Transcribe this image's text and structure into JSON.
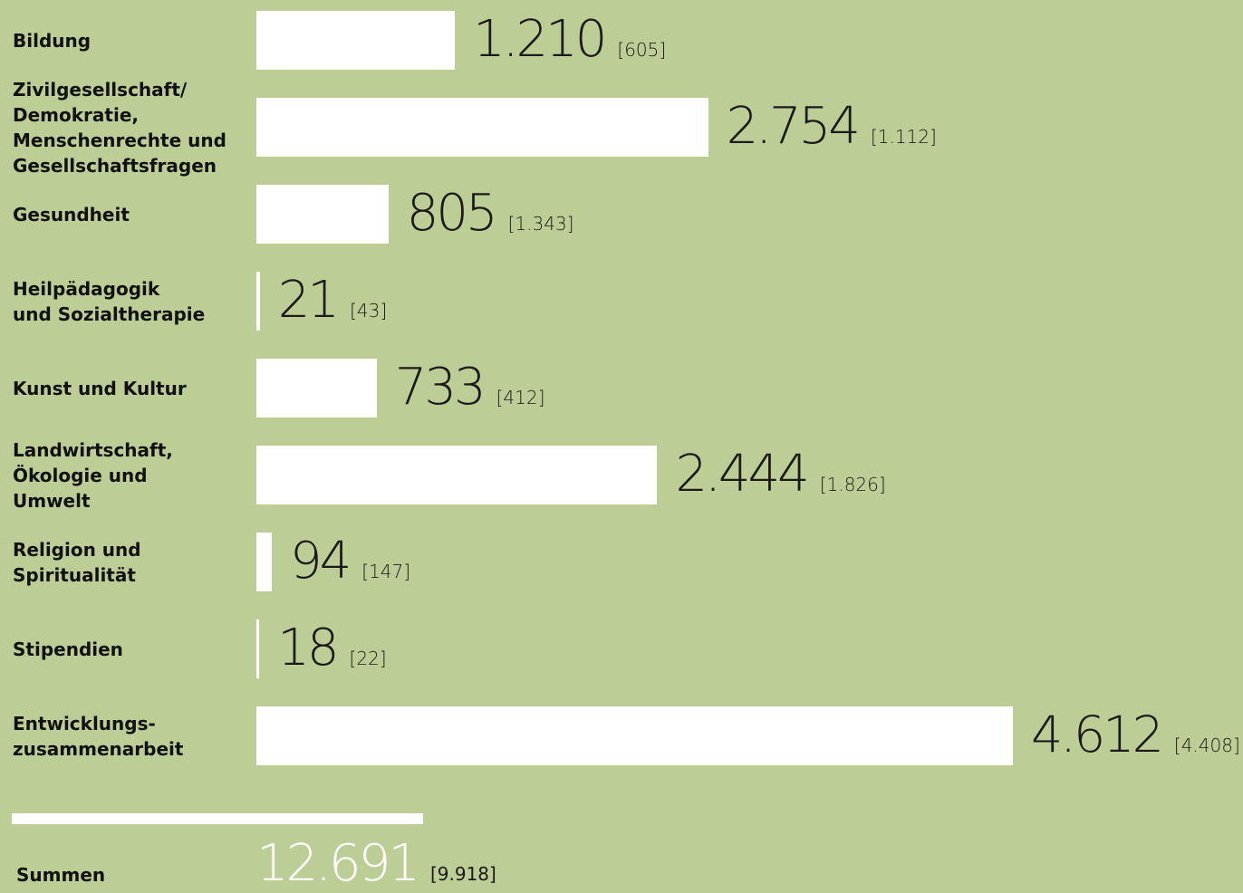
{
  "chart_data": {
    "type": "bar",
    "orientation": "horizontal",
    "categories": [
      "Bildung",
      "Zivilgesellschaft/\nDemokratie,\nMenschenrechte und\nGesellschaftsfragen",
      "Gesundheit",
      "Heilpädagogik\nund Sozialtherapie",
      "Kunst und Kultur",
      "Landwirtschaft,\nÖkologie und\nUmwelt",
      "Religion und\nSpiritualität",
      "Stipendien",
      "Entwicklungs-\nzusammenarbeit"
    ],
    "values": [
      1210,
      2754,
      805,
      21,
      733,
      2444,
      94,
      18,
      4612
    ],
    "value_labels": [
      "1.210",
      "2.754",
      "805",
      "21",
      "733",
      "2.444",
      "94",
      "18",
      "4.612"
    ],
    "previous_labels": [
      "[605]",
      "[1.112]",
      "[1.343]",
      "[43]",
      "[412]",
      "[1.826]",
      "[147]",
      "[22]",
      "[4.408]"
    ],
    "bar_color": "#ffffff",
    "background_color": "#bccd95",
    "total": {
      "label": "Summen",
      "value": 12691,
      "value_label": "12.691",
      "previous_label": "[9.918]"
    }
  }
}
